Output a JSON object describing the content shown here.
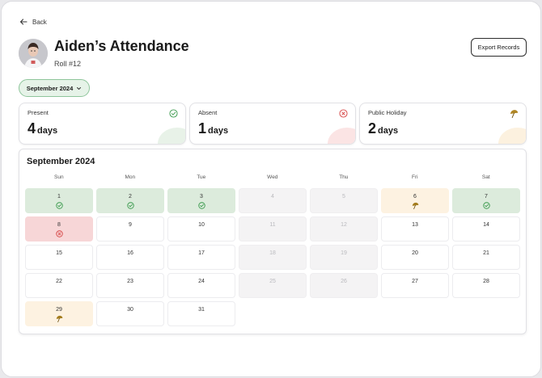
{
  "header": {
    "back_label": "Back",
    "student_name": "Aiden’s Attendance",
    "roll": "Roll #12",
    "export_label": "Export Records"
  },
  "month_selector": {
    "selected": "September 2024"
  },
  "stats": [
    {
      "label": "Present",
      "value": "4",
      "unit": "days",
      "status": "present",
      "icon": "check-circle-icon"
    },
    {
      "label": "Absent",
      "value": "1",
      "unit": "days",
      "status": "absent",
      "icon": "x-circle-icon"
    },
    {
      "label": "Public Holiday",
      "value": "2",
      "unit": "days",
      "status": "holiday",
      "icon": "umbrella-icon"
    }
  ],
  "colors": {
    "present_bg": "#dcebdc",
    "present_icon": "#3a9a4d",
    "absent_bg": "#f7d6d7",
    "absent_icon": "#d64545",
    "holiday_bg": "#fdf2e1",
    "holiday_icon": "#a47c1c",
    "weekend_bg": "#f4f3f4",
    "pill_bg": "#e6f3e8",
    "pill_border": "#8ec59b"
  },
  "calendar": {
    "title": "September 2024",
    "weekdays": [
      "Sun",
      "Mon",
      "Tue",
      "Wed",
      "Thu",
      "Fri",
      "Sat"
    ],
    "days": [
      {
        "d": "1",
        "status": "present"
      },
      {
        "d": "2",
        "status": "present"
      },
      {
        "d": "3",
        "status": "present"
      },
      {
        "d": "4",
        "status": "weekend"
      },
      {
        "d": "5",
        "status": "weekend"
      },
      {
        "d": "6",
        "status": "holiday"
      },
      {
        "d": "7",
        "status": "present"
      },
      {
        "d": "8",
        "status": "absent"
      },
      {
        "d": "9",
        "status": ""
      },
      {
        "d": "10",
        "status": ""
      },
      {
        "d": "11",
        "status": "weekend"
      },
      {
        "d": "12",
        "status": "weekend"
      },
      {
        "d": "13",
        "status": ""
      },
      {
        "d": "14",
        "status": ""
      },
      {
        "d": "15",
        "status": ""
      },
      {
        "d": "16",
        "status": ""
      },
      {
        "d": "17",
        "status": ""
      },
      {
        "d": "18",
        "status": "weekend"
      },
      {
        "d": "19",
        "status": "weekend"
      },
      {
        "d": "20",
        "status": ""
      },
      {
        "d": "21",
        "status": ""
      },
      {
        "d": "22",
        "status": ""
      },
      {
        "d": "23",
        "status": ""
      },
      {
        "d": "24",
        "status": ""
      },
      {
        "d": "25",
        "status": "weekend"
      },
      {
        "d": "26",
        "status": "weekend"
      },
      {
        "d": "27",
        "status": ""
      },
      {
        "d": "28",
        "status": ""
      },
      {
        "d": "29",
        "status": "holiday"
      },
      {
        "d": "30",
        "status": ""
      },
      {
        "d": "31",
        "status": ""
      }
    ]
  }
}
